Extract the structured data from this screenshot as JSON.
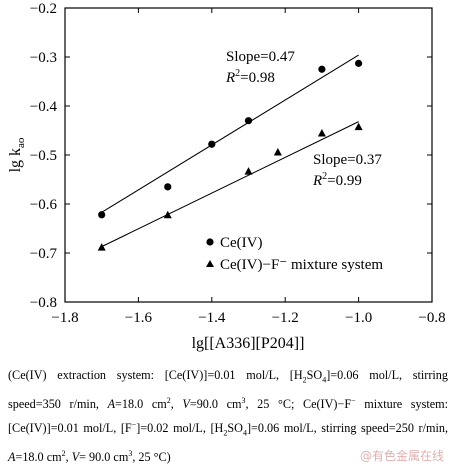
{
  "chart_data": {
    "type": "scatter",
    "xlabel": "lg[[A336][P204]]",
    "ylabel": "lg k",
    "ylabel_sub": "ao",
    "xlim": [
      -1.8,
      -0.8
    ],
    "ylim": [
      -0.8,
      -0.2
    ],
    "x_ticks": [
      "−1.8",
      "−1.6",
      "−1.4",
      "−1.2",
      "−1.0",
      "−0.8"
    ],
    "x_tick_values": [
      -1.8,
      -1.6,
      -1.4,
      -1.2,
      -1.0,
      -0.8
    ],
    "y_ticks": [
      "−0.2",
      "−0.3",
      "−0.4",
      "−0.5",
      "−0.6",
      "−0.7",
      "−0.8"
    ],
    "y_tick_values": [
      -0.2,
      -0.3,
      -0.4,
      -0.5,
      -0.6,
      -0.7,
      -0.8
    ],
    "grid": false,
    "legend_position": "lower-right",
    "series": [
      {
        "name": "Ce(IV)",
        "marker": "circle",
        "x": [
          -1.7,
          -1.52,
          -1.4,
          -1.3,
          -1.1,
          -1.0
        ],
        "y": [
          -0.622,
          -0.565,
          -0.478,
          -0.43,
          -0.325,
          -0.313
        ],
        "fit": {
          "x": [
            -1.7,
            -1.0
          ],
          "y": [
            -0.617,
            -0.296
          ]
        },
        "slope_label": "Slope=0.47",
        "r2_value": "=0.98"
      },
      {
        "name": "Ce(IV)−F⁻ mixture system",
        "marker": "triangle",
        "x": [
          -1.7,
          -1.52,
          -1.3,
          -1.22,
          -1.1,
          -1.0
        ],
        "y": [
          -0.688,
          -0.622,
          -0.533,
          -0.494,
          -0.455,
          -0.442
        ],
        "fit": {
          "x": [
            -1.7,
            -1.0
          ],
          "y": [
            -0.687,
            -0.432
          ]
        },
        "slope_label": "Slope=0.37",
        "r2_value": "=0.99"
      }
    ]
  },
  "caption": {
    "parts": [
      "(Ce(IV) extraction system: [Ce(IV)]=0.01 mol/L, [H",
      "2",
      "SO",
      "4",
      "]=0.06 mol/L, stirring speed=350 r/min, ",
      "A",
      "=18.0 cm",
      "2",
      ", ",
      "V",
      "=90.0 cm",
      "3",
      ", 25 °C; Ce(IV)−F",
      "−",
      " mixture system: [Ce(IV)]=0.01 mol/L, [F",
      "−",
      "]=0.02 mol/L, [H",
      "2",
      "SO",
      "4",
      "]=0.06 mol/L, stirring speed=250 r/min, ",
      "A",
      "=18.0 cm",
      "2",
      ", ",
      "V",
      "= 90.0 cm",
      "3",
      ", 25 °C)"
    ]
  },
  "watermark": "@有色金属在线"
}
